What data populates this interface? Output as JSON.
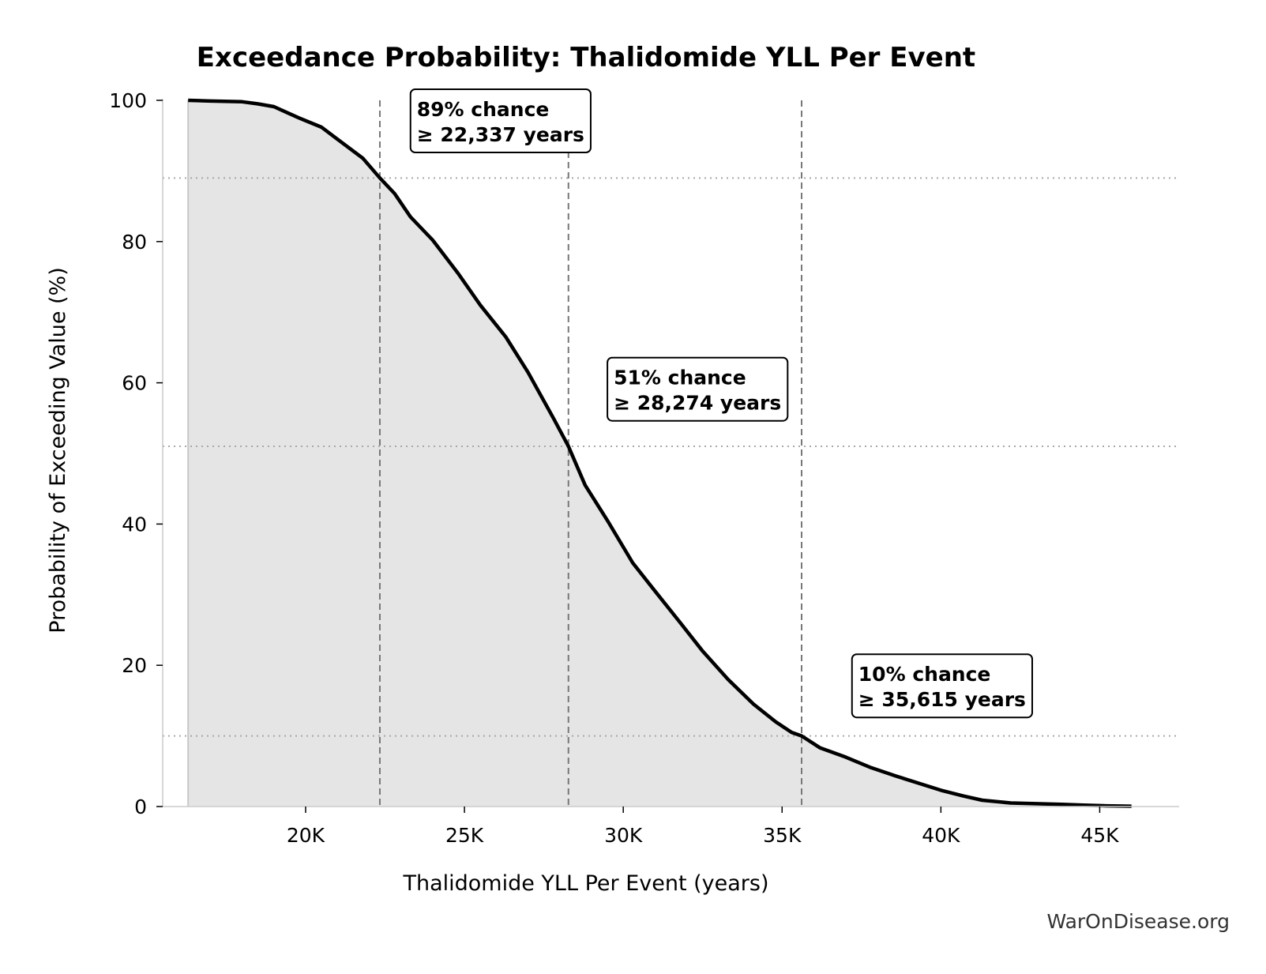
{
  "chart_data": {
    "type": "area",
    "title": "Exceedance Probability: Thalidomide YLL Per Event",
    "xlabel": "Thalidomide YLL Per Event (years)",
    "ylabel": "Probability of Exceeding Value (%)",
    "xlim": [
      15500,
      47500
    ],
    "ylim": [
      0,
      100
    ],
    "x_ticks": [
      20000,
      25000,
      30000,
      35000,
      40000,
      45000
    ],
    "x_tick_labels": [
      "20K",
      "25K",
      "30K",
      "35K",
      "40K",
      "45K"
    ],
    "y_ticks": [
      0,
      20,
      40,
      60,
      80,
      100
    ],
    "y_tick_labels": [
      "0",
      "20",
      "40",
      "60",
      "80",
      "100"
    ],
    "grid": false,
    "line_color": "#000000",
    "fill_color": "#e5e5e5",
    "series": [
      {
        "x": [
          16300,
          17000,
          18000,
          18500,
          19000,
          19300,
          19800,
          20500,
          21000,
          21800,
          22337,
          22800,
          23300,
          24000,
          24800,
          25500,
          26300,
          27000,
          27800,
          28274,
          28800,
          29500,
          30300,
          31000,
          31800,
          32500,
          33300,
          34100,
          34800,
          35300,
          35615,
          36200,
          37000,
          37800,
          38600,
          39300,
          40000,
          40700,
          41300,
          42200,
          43000,
          43800,
          44500,
          45200,
          46000
        ],
        "y": [
          100,
          99.9,
          99.8,
          99.5,
          99.1,
          98.5,
          97.5,
          96.2,
          94.5,
          91.8,
          89,
          86.8,
          83.5,
          80.2,
          75.5,
          71,
          66.5,
          61.5,
          55,
          51,
          45.5,
          40.5,
          34.5,
          30.5,
          26,
          22,
          18,
          14.5,
          12,
          10.5,
          10,
          8.3,
          7,
          5.5,
          4.3,
          3.3,
          2.3,
          1.5,
          0.9,
          0.5,
          0.4,
          0.3,
          0.2,
          0.1,
          0.05
        ]
      }
    ],
    "reference_lines": {
      "vertical_x": [
        22337,
        28274,
        35615
      ],
      "horizontal_y": [
        89,
        51,
        10
      ]
    },
    "annotations": [
      {
        "line1": "89% chance",
        "line2": "≥ 22,337 years",
        "x": 23500,
        "y": 100
      },
      {
        "line1": "51% chance",
        "line2": "≥ 28,274 years",
        "x": 29700,
        "y": 62
      },
      {
        "line1": "10% chance",
        "line2": "≥ 35,615 years",
        "x": 37400,
        "y": 20
      }
    ]
  },
  "credit": "WarOnDisease.org"
}
